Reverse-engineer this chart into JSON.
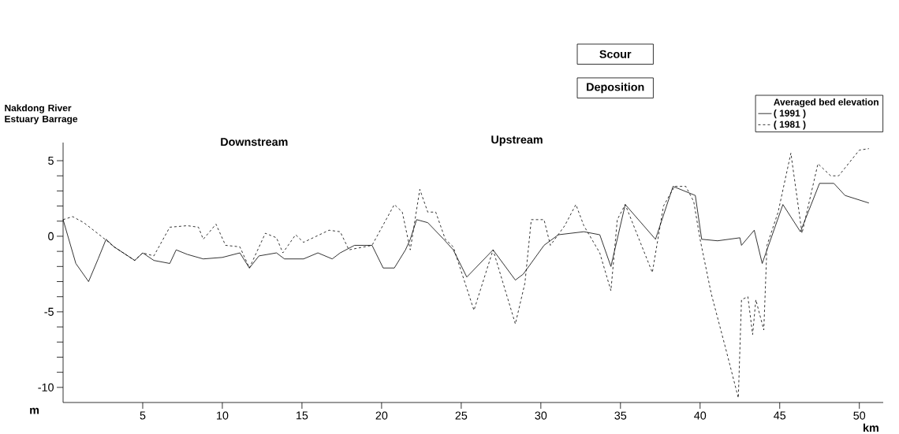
{
  "chart_data": {
    "type": "line",
    "annotations": [
      "Nakdong River Estuary Barrage",
      "Downstream",
      "Upstream",
      "Scour",
      "Deposition"
    ],
    "xlabel": "km",
    "ylabel": "m",
    "legend_title": "Averaged bed elevation",
    "xlim": [
      0,
      51.5
    ],
    "xticks": [
      5,
      10,
      15,
      20,
      25,
      30,
      35,
      40,
      45,
      50
    ],
    "ylim": [
      -11,
      6.2
    ],
    "yticks": [
      {
        "value": -10,
        "label": "-10"
      },
      {
        "value": -9,
        "label": null
      },
      {
        "value": -8,
        "label": null
      },
      {
        "value": -7,
        "label": null
      },
      {
        "value": -6,
        "label": null
      },
      {
        "value": -5,
        "label": "-5"
      },
      {
        "value": -4,
        "label": null
      },
      {
        "value": -3,
        "label": null
      },
      {
        "value": -2,
        "label": null
      },
      {
        "value": -1,
        "label": null
      },
      {
        "value": 0,
        "label": "0"
      },
      {
        "value": 1,
        "label": null
      },
      {
        "value": 2,
        "label": null
      },
      {
        "value": 3,
        "label": null
      },
      {
        "value": 4,
        "label": null
      },
      {
        "value": 5,
        "label": "5"
      }
    ],
    "legend": "top right",
    "marker": "none",
    "series": [
      {
        "name": "( 1991 )",
        "color": "#000000",
        "line_style": "solid",
        "x": [
          0,
          0.8,
          1.6,
          2.2,
          2.7,
          3.2,
          4.5,
          5.0,
          5.7,
          6.7,
          7.1,
          7.8,
          8.8,
          10.0,
          11.1,
          11.7,
          12.3,
          13.4,
          13.9,
          15.1,
          16.0,
          16.9,
          17.4,
          18.3,
          19.4,
          20.1,
          20.8,
          21.5,
          21.8,
          22.2,
          22.9,
          23.9,
          24.5,
          25.35,
          27.0,
          28.4,
          28.9,
          30.2,
          31.1,
          32.7,
          33.7,
          34.4,
          35.3,
          37.2,
          38.3,
          39.7,
          40.1,
          41.1,
          42.5,
          42.6,
          43.4,
          43.9,
          45.2,
          46.3,
          47.5,
          48.4,
          49.1,
          50.6
        ],
        "values": [
          1.1,
          -1.8,
          -3.0,
          -1.5,
          -0.2,
          -0.7,
          -1.6,
          -1.1,
          -1.6,
          -1.8,
          -0.9,
          -1.2,
          -1.5,
          -1.4,
          -1.1,
          -2.1,
          -1.3,
          -1.1,
          -1.5,
          -1.5,
          -1.1,
          -1.5,
          -1.1,
          -0.6,
          -0.6,
          -2.1,
          -2.1,
          -0.9,
          -0.2,
          1.1,
          0.9,
          -0.2,
          -0.9,
          -2.7,
          -0.9,
          -2.9,
          -2.5,
          -0.6,
          0.1,
          0.3,
          0.1,
          -2.0,
          2.1,
          -0.2,
          3.3,
          2.7,
          -0.2,
          -0.3,
          -0.1,
          -0.6,
          0.4,
          -1.8,
          2.1,
          0.3,
          3.5,
          3.5,
          2.7,
          2.2
        ]
      },
      {
        "name": "( 1981 )",
        "color": "#000000",
        "line_style": "dashed",
        "x": [
          0,
          0.6,
          1.3,
          2.4,
          3.2,
          4.5,
          5.0,
          5.7,
          6.7,
          7.8,
          8.5,
          8.8,
          9.6,
          10.2,
          11.1,
          11.7,
          12.7,
          13.4,
          13.8,
          14.6,
          15.1,
          16.7,
          17.4,
          17.95,
          19.4,
          20.8,
          21.3,
          21.8,
          22.4,
          22.9,
          23.4,
          24.0,
          24.5,
          25.8,
          27.0,
          28.4,
          29.0,
          29.4,
          30.2,
          30.6,
          31.5,
          32.2,
          32.7,
          33.7,
          34.4,
          34.8,
          35.3,
          37.0,
          37.7,
          38.4,
          39.1,
          39.6,
          40.0,
          40.7,
          41.6,
          42.4,
          42.6,
          43.0,
          43.3,
          43.5,
          44.0,
          44.2,
          44.9,
          45.7,
          46.4,
          47.4,
          48.2,
          48.7,
          50.0,
          50.6
        ],
        "values": [
          1.1,
          1.3,
          0.9,
          0.0,
          -0.7,
          -1.6,
          -1.1,
          -1.3,
          0.6,
          0.7,
          0.6,
          -0.2,
          0.8,
          -0.6,
          -0.7,
          -2.1,
          0.2,
          -0.1,
          -1.1,
          0.1,
          -0.4,
          0.4,
          0.3,
          -0.9,
          -0.6,
          2.1,
          1.6,
          -0.9,
          3.1,
          1.6,
          1.6,
          -0.2,
          -0.7,
          -4.9,
          -0.9,
          -5.8,
          -3.1,
          1.1,
          1.1,
          -0.6,
          0.7,
          2.1,
          0.7,
          -1.1,
          -3.6,
          1.1,
          2.1,
          -2.4,
          2.0,
          3.3,
          3.3,
          2.3,
          -0.2,
          -3.8,
          -7.4,
          -10.7,
          -4.2,
          -4.0,
          -6.5,
          -4.2,
          -6.2,
          -0.6,
          1.6,
          5.5,
          0.2,
          4.8,
          4.0,
          4.0,
          5.7,
          5.8
        ]
      }
    ]
  }
}
